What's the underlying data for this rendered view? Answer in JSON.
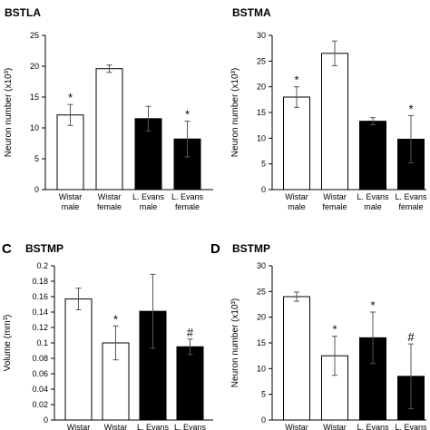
{
  "chart_data": [
    {
      "type": "bar",
      "letter": "",
      "title": "BSTLA",
      "ylabel": "Neuron number (x10³)",
      "ylim": [
        0,
        25
      ],
      "yticks": [
        "0",
        "5",
        "10",
        "15",
        "20",
        "25"
      ],
      "categories": [
        [
          "Wistar",
          "male"
        ],
        [
          "Wistar",
          "female"
        ],
        [
          "L. Evans",
          "male"
        ],
        [
          "L. Evans",
          "female"
        ]
      ],
      "values": [
        12.1,
        19.6,
        11.5,
        8.2
      ],
      "errors": [
        1.7,
        0.6,
        2.0,
        2.9
      ],
      "fills": [
        "#ffffff",
        "#ffffff",
        "#000000",
        "#000000"
      ],
      "marks": [
        "*",
        "",
        "",
        "*"
      ]
    },
    {
      "type": "bar",
      "letter": "",
      "title": "BSTMA",
      "ylabel": "Neuron number (x10³)",
      "ylim": [
        0,
        30
      ],
      "yticks": [
        "0",
        "5",
        "10",
        "15",
        "20",
        "25",
        "30"
      ],
      "categories": [
        [
          "Wistar",
          "male"
        ],
        [
          "Wistar",
          "female"
        ],
        [
          "L. Evans",
          "male"
        ],
        [
          "L. Evans",
          "female"
        ]
      ],
      "values": [
        18.0,
        26.5,
        13.3,
        9.8
      ],
      "errors": [
        2.0,
        2.4,
        0.7,
        4.6
      ],
      "fills": [
        "#ffffff",
        "#ffffff",
        "#000000",
        "#000000"
      ],
      "marks": [
        "*",
        "",
        "",
        "*"
      ]
    },
    {
      "type": "bar",
      "letter": "C",
      "title": "BSTMP",
      "ylabel": "Volume (mm³)",
      "ylim": [
        0,
        0.2
      ],
      "yticks": [
        "0",
        "0.02",
        "0.04",
        "0.06",
        "0.08",
        "0.1",
        "0.12",
        "0.14",
        "0.16",
        "0.18",
        "0.2"
      ],
      "categories": [
        [
          "Wistar",
          ""
        ],
        [
          "Wistar",
          ""
        ],
        [
          "L. Evans",
          ""
        ],
        [
          "L. Evans",
          ""
        ]
      ],
      "values": [
        0.157,
        0.1,
        0.141,
        0.095
      ],
      "errors": [
        0.014,
        0.022,
        0.048,
        0.01
      ],
      "fills": [
        "#ffffff",
        "#ffffff",
        "#000000",
        "#000000"
      ],
      "marks": [
        "",
        "*",
        "",
        "#"
      ]
    },
    {
      "type": "bar",
      "letter": "D",
      "title": "BSTMP",
      "ylabel": "Neuron number (x10³)",
      "ylim": [
        0,
        30
      ],
      "yticks": [
        "0",
        "5",
        "10",
        "15",
        "20",
        "25",
        "30"
      ],
      "categories": [
        [
          "Wistar",
          ""
        ],
        [
          "Wistar",
          ""
        ],
        [
          "L. Evans",
          ""
        ],
        [
          "L. Evans",
          ""
        ]
      ],
      "values": [
        24.0,
        12.5,
        16.0,
        8.5
      ],
      "errors": [
        0.9,
        3.8,
        5.0,
        6.3
      ],
      "fills": [
        "#ffffff",
        "#ffffff",
        "#000000",
        "#000000"
      ],
      "marks": [
        "",
        "*",
        "*",
        "#"
      ]
    }
  ]
}
